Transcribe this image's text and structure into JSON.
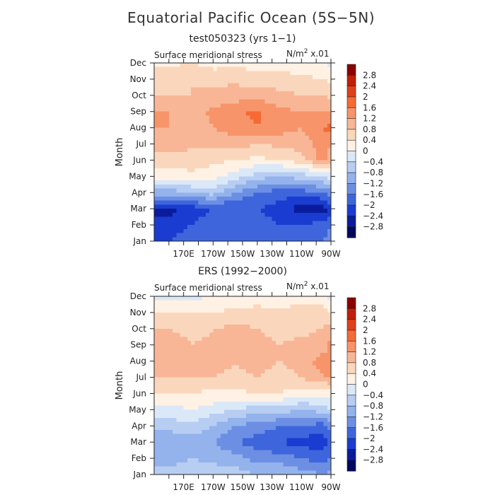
{
  "figure": {
    "title": "Equatorial Pacific Ocean (5S−5N)"
  },
  "chart_data": [
    {
      "type": "heatmap",
      "title": "test050323 (yrs 1−1)",
      "field_label": "Surface meridional stress",
      "units_prefix": "N/m",
      "units_exp": "2",
      "units_suffix": " x.01",
      "ylabel": "Month",
      "x_tick_labels": [
        "170E",
        "170W",
        "150W",
        "130W",
        "110W",
        "90W"
      ],
      "y_tick_labels": [
        "Jan",
        "Feb",
        "Mar",
        "Apr",
        "May",
        "Jun",
        "Jul",
        "Aug",
        "Sep",
        "Oct",
        "Nov",
        "Dec"
      ],
      "x_lon": [
        160,
        175,
        190,
        205,
        220,
        235,
        250,
        265,
        270
      ],
      "months": [
        1,
        2,
        3,
        4,
        5,
        6,
        7,
        8,
        9,
        10,
        11,
        12
      ],
      "values": [
        [
          -2.0,
          -1.8,
          -1.8,
          -1.6,
          -1.6,
          -1.8,
          -1.8,
          -1.6,
          -1.4
        ],
        [
          -2.2,
          -2.0,
          -1.8,
          -1.8,
          -1.8,
          -2.0,
          -2.0,
          -1.8,
          -1.6
        ],
        [
          -2.6,
          -2.2,
          -2.0,
          -2.0,
          -2.0,
          -2.2,
          -2.6,
          -2.6,
          -2.2
        ],
        [
          -1.0,
          -0.8,
          -0.6,
          -1.2,
          -1.6,
          -1.8,
          -1.8,
          -1.6,
          -1.4
        ],
        [
          0.2,
          0.3,
          0.2,
          -0.2,
          -0.6,
          -0.8,
          -0.6,
          -0.4,
          -0.2
        ],
        [
          0.6,
          0.6,
          0.5,
          0.4,
          0.3,
          0.4,
          0.6,
          1.4,
          1.0
        ],
        [
          1.0,
          0.9,
          0.9,
          1.0,
          0.8,
          0.9,
          1.0,
          1.4,
          1.2
        ],
        [
          1.2,
          1.0,
          1.2,
          1.4,
          1.6,
          1.4,
          1.2,
          1.6,
          1.8
        ],
        [
          1.2,
          1.0,
          1.3,
          1.5,
          1.7,
          1.3,
          1.2,
          1.2,
          1.1
        ],
        [
          0.8,
          0.8,
          0.9,
          1.0,
          1.0,
          0.9,
          0.8,
          0.8,
          0.6
        ],
        [
          0.6,
          0.8,
          0.7,
          0.7,
          0.6,
          0.6,
          0.5,
          0.4,
          0.3
        ],
        [
          0.3,
          0.4,
          0.2,
          0.3,
          0.2,
          0.2,
          0.1,
          0.0,
          -0.2
        ]
      ]
    },
    {
      "type": "heatmap",
      "title": "ERS (1992−2000)",
      "field_label": "Surface meridional stress",
      "units_prefix": "N/m",
      "units_exp": "2",
      "units_suffix": " x.01",
      "ylabel": "Month",
      "x_tick_labels": [
        "170E",
        "170W",
        "150W",
        "130W",
        "110W",
        "90W"
      ],
      "y_tick_labels": [
        "Jan",
        "Feb",
        "Mar",
        "Apr",
        "May",
        "Jun",
        "Jul",
        "Aug",
        "Sep",
        "Oct",
        "Nov",
        "Dec"
      ],
      "x_lon": [
        160,
        175,
        190,
        205,
        220,
        235,
        250,
        265,
        270
      ],
      "months": [
        1,
        2,
        3,
        4,
        5,
        6,
        7,
        8,
        9,
        10,
        11,
        12
      ],
      "values": [
        [
          -0.6,
          -0.5,
          -0.6,
          -0.6,
          -0.8,
          -0.8,
          -1.0,
          -1.2,
          -1.0
        ],
        [
          -1.0,
          -0.8,
          -0.9,
          -1.0,
          -1.4,
          -1.4,
          -1.6,
          -1.8,
          -1.6
        ],
        [
          -1.2,
          -1.0,
          -1.2,
          -1.6,
          -1.8,
          -2.0,
          -2.2,
          -2.2,
          -1.8
        ],
        [
          -0.6,
          -0.5,
          -0.8,
          -1.2,
          -1.4,
          -1.6,
          -1.6,
          -1.8,
          -1.4
        ],
        [
          -0.2,
          0.0,
          -0.2,
          -0.4,
          -0.6,
          -0.6,
          -0.8,
          -0.6,
          -0.4
        ],
        [
          0.4,
          0.4,
          0.3,
          0.3,
          0.4,
          0.4,
          0.2,
          0.1,
          0.2
        ],
        [
          0.8,
          0.8,
          0.8,
          0.7,
          0.8,
          0.6,
          0.8,
          1.2,
          1.2
        ],
        [
          1.0,
          0.8,
          1.0,
          0.8,
          1.0,
          0.8,
          1.0,
          1.4,
          1.2
        ],
        [
          1.2,
          0.8,
          0.9,
          1.0,
          0.9,
          0.8,
          0.9,
          1.0,
          1.4
        ],
        [
          0.8,
          0.6,
          0.8,
          0.9,
          0.8,
          0.7,
          0.7,
          0.8,
          1.0
        ],
        [
          0.4,
          0.4,
          0.4,
          0.5,
          0.6,
          0.5,
          0.6,
          0.6,
          0.4
        ],
        [
          -0.2,
          -0.1,
          0.0,
          0.0,
          0.1,
          0.1,
          0.2,
          0.1,
          -0.2
        ]
      ]
    }
  ],
  "colorbar": {
    "levels": [
      "2.8",
      "2.4",
      "2",
      "1.6",
      "1.2",
      "0.8",
      "0.4",
      "0",
      "−0.4",
      "−0.8",
      "−1.2",
      "−1.6",
      "−2",
      "−2.4",
      "−2.8"
    ],
    "colors": [
      "#8b0000",
      "#c0200a",
      "#e0401a",
      "#f56a35",
      "#f7946a",
      "#f8b696",
      "#fad7bc",
      "#fff1e4",
      "#dbe8f8",
      "#b7cef2",
      "#94b2ec",
      "#6c8fe3",
      "#3e65dc",
      "#1a3cd0",
      "#0a1c9c",
      "#02075e"
    ]
  }
}
